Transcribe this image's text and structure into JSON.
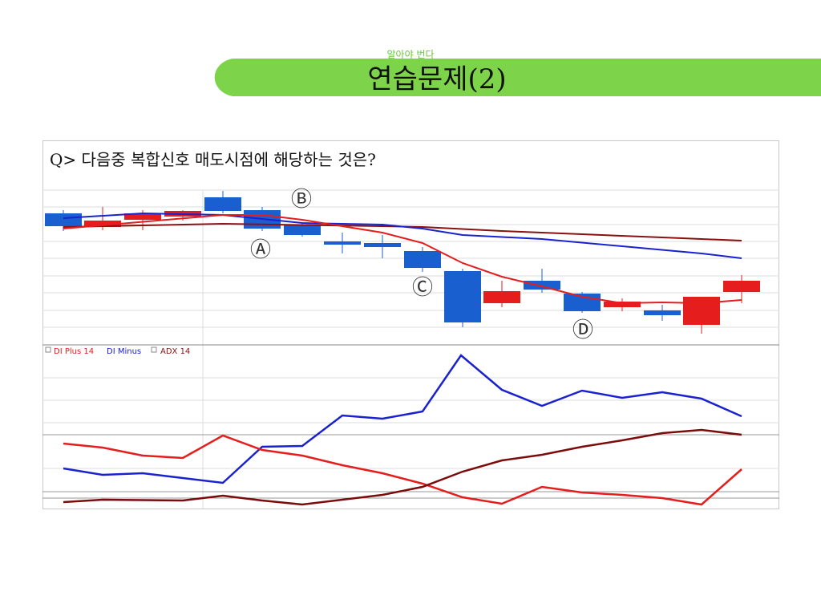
{
  "header": {
    "subtitle": "알아야 번다",
    "title": "연습문제(2)"
  },
  "question": "Q> 다음중 복합신호 매도시점에 해당하는 것은?",
  "annotations": [
    "Ⓐ",
    "Ⓑ",
    "Ⓒ",
    "Ⓓ"
  ],
  "legend": [
    "DI Plus 14",
    "DI Minus",
    "ADX 14"
  ]
}
